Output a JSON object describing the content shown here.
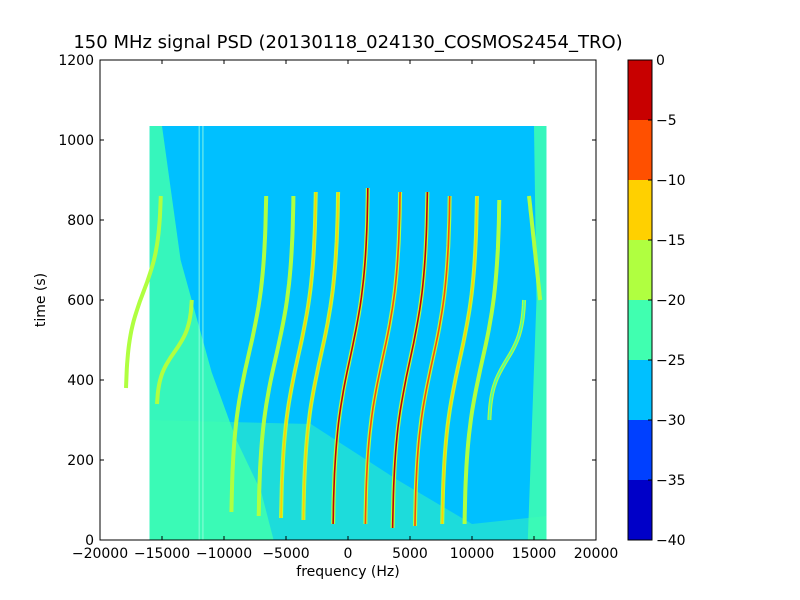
{
  "chart_data": {
    "type": "heatmap",
    "title": "150 MHz signal PSD (20130118_024130_COSMOS2454_TRO)",
    "xlabel": "frequency (Hz)",
    "ylabel": "time (s)",
    "xlim": [
      -20000,
      20000
    ],
    "ylim": [
      0,
      1200
    ],
    "xticks": [
      -20000,
      -15000,
      -10000,
      -5000,
      0,
      5000,
      10000,
      15000,
      20000
    ],
    "yticks": [
      0,
      200,
      400,
      600,
      800,
      1000,
      1200
    ],
    "data_extent": {
      "x": [
        -16000,
        16000
      ],
      "y": [
        0,
        1035
      ]
    },
    "background_level": -27.5,
    "edge_level": -22.5,
    "grid": false,
    "colorbar": {
      "position": "right",
      "ticks": [
        0,
        -5,
        -10,
        -15,
        -20,
        -25,
        -30,
        -35,
        -40
      ],
      "bands": [
        {
          "from": -40,
          "to": -35,
          "color": "#0000c8"
        },
        {
          "from": -35,
          "to": -30,
          "color": "#0040ff"
        },
        {
          "from": -30,
          "to": -25,
          "color": "#00c0ff"
        },
        {
          "from": -25,
          "to": -20,
          "color": "#40ffb0"
        },
        {
          "from": -20,
          "to": -15,
          "color": "#b0ff40"
        },
        {
          "from": -15,
          "to": -10,
          "color": "#ffd000"
        },
        {
          "from": -10,
          "to": -5,
          "color": "#ff5000"
        },
        {
          "from": -5,
          "to": 0,
          "color": "#c80000"
        }
      ]
    },
    "traces": [
      {
        "center_hz": -16500,
        "t_top": 860,
        "t_bottom": 380,
        "peak_level": -17,
        "upper_branch": true
      },
      {
        "center_hz": -14000,
        "t_top": 600,
        "t_bottom": 340,
        "peak_level": -18
      },
      {
        "center_hz": -8000,
        "t_top": 860,
        "t_bottom": 70,
        "peak_level": -17
      },
      {
        "center_hz": -5800,
        "t_top": 860,
        "t_bottom": 60,
        "peak_level": -17
      },
      {
        "center_hz": -4000,
        "t_top": 870,
        "t_bottom": 55,
        "peak_level": -12
      },
      {
        "center_hz": -2200,
        "t_top": 870,
        "t_bottom": 50,
        "peak_level": -10
      },
      {
        "center_hz": 200,
        "t_top": 880,
        "t_bottom": 40,
        "peak_level": -3
      },
      {
        "center_hz": 2800,
        "t_top": 870,
        "t_bottom": 40,
        "peak_level": -8
      },
      {
        "center_hz": 5000,
        "t_top": 870,
        "t_bottom": 30,
        "peak_level": -4
      },
      {
        "center_hz": 6800,
        "t_top": 860,
        "t_bottom": 35,
        "peak_level": -8
      },
      {
        "center_hz": 9000,
        "t_top": 860,
        "t_bottom": 40,
        "peak_level": -14
      },
      {
        "center_hz": 10800,
        "t_top": 850,
        "t_bottom": 40,
        "peak_level": -17
      },
      {
        "center_hz": 12800,
        "t_top": 600,
        "t_bottom": 300,
        "peak_level": -20
      },
      {
        "center_hz": 15500,
        "t_top": 860,
        "t_bottom": 600,
        "peak_level": -17,
        "right_edge": true
      }
    ]
  }
}
